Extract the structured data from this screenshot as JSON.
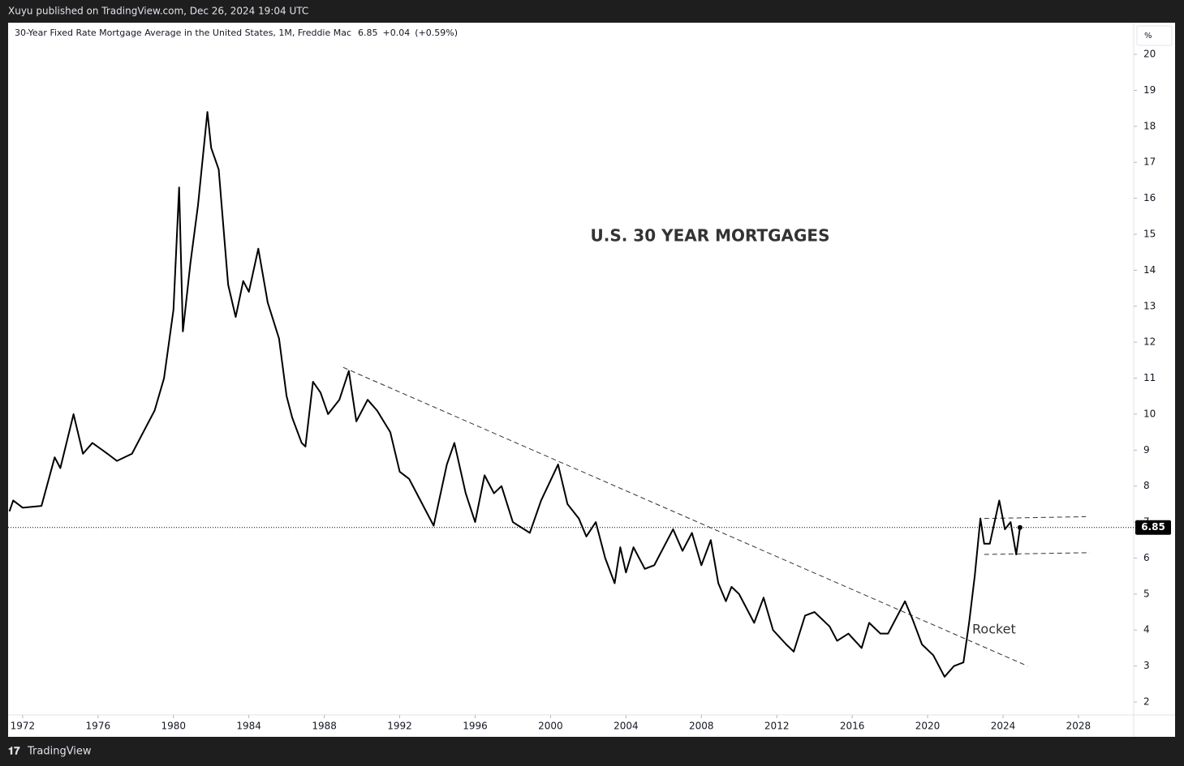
{
  "header": {
    "publisher": "Xuyu published on TradingView.com, Dec 26, 2024 19:04 UTC",
    "brand": "TradingView"
  },
  "chart_data": {
    "type": "line",
    "legend": {
      "name": "30-Year Fixed Rate Mortgage Average in the United States, 1M, Freddie Mac",
      "change": "+0.04",
      "change_pct": "(+0.59%)"
    },
    "annotations": {
      "title": "U.S. 30 YEAR MORTGAGES",
      "rocket": "Rocket"
    },
    "y_unit": "%",
    "xlim": [
      1971.23,
      2030.93
    ],
    "xticks": [
      1972,
      1976,
      1980,
      1984,
      1988,
      1992,
      1996,
      2000,
      2004,
      2008,
      2012,
      2016,
      2020,
      2024,
      2028
    ],
    "ylim": [
      1.64,
      20.88
    ],
    "yticks": [
      2,
      3,
      4,
      5,
      6,
      7,
      8,
      9,
      10,
      11,
      12,
      13,
      14,
      15,
      16,
      17,
      18,
      19,
      20
    ],
    "x": [
      1971.3,
      1971.5,
      1972,
      1973,
      1973.7,
      1974,
      1974.7,
      1975.2,
      1975.7,
      1976.5,
      1977,
      1977.8,
      1978.5,
      1979,
      1979.5,
      1980,
      1980.3,
      1980.5,
      1980.9,
      1981.3,
      1981.8,
      1982,
      1982.4,
      1982.9,
      1983.3,
      1983.7,
      1984,
      1984.5,
      1985,
      1985.6,
      1986,
      1986.3,
      1986.8,
      1987,
      1987.4,
      1987.8,
      1988.2,
      1988.8,
      1989.3,
      1989.7,
      1990.3,
      1990.8,
      1991.5,
      1992,
      1992.5,
      1993,
      1993.8,
      1994.5,
      1994.9,
      1995.5,
      1996,
      1996.5,
      1997,
      1997.4,
      1998,
      1998.9,
      1999.5,
      2000.4,
      2000.9,
      2001.5,
      2001.9,
      2002.4,
      2002.9,
      2003.4,
      2003.7,
      2004,
      2004.4,
      2005,
      2005.5,
      2006.5,
      2007,
      2007.5,
      2008,
      2008.5,
      2008.9,
      2009.3,
      2009.6,
      2010,
      2010.8,
      2011.3,
      2011.8,
      2012.5,
      2012.9,
      2013.5,
      2014,
      2014.8,
      2015.2,
      2015.8,
      2016.5,
      2016.9,
      2017.5,
      2017.9,
      2018.8,
      2019.2,
      2019.7,
      2020.3,
      2020.9,
      2021.4,
      2021.9,
      2022.2,
      2022.5,
      2022.8,
      2023,
      2023.3,
      2023.8,
      2024.1,
      2024.4,
      2024.7,
      2024.9
    ],
    "series": [
      {
        "name": "30-Year Fixed Rate Mortgage Average",
        "color": "#000000",
        "values": [
          7.3,
          7.6,
          7.4,
          7.45,
          8.8,
          8.5,
          10.0,
          8.9,
          9.2,
          8.9,
          8.7,
          8.9,
          9.6,
          10.1,
          11.0,
          12.9,
          16.3,
          12.3,
          14.2,
          15.8,
          18.4,
          17.4,
          16.8,
          13.6,
          12.7,
          13.7,
          13.4,
          14.6,
          13.1,
          12.1,
          10.5,
          9.9,
          9.2,
          9.1,
          10.9,
          10.6,
          10.0,
          10.4,
          11.2,
          9.8,
          10.4,
          10.1,
          9.5,
          8.4,
          8.2,
          7.7,
          6.9,
          8.6,
          9.2,
          7.8,
          7.0,
          8.3,
          7.8,
          8.0,
          7.0,
          6.7,
          7.6,
          8.6,
          7.5,
          7.1,
          6.6,
          7.0,
          6.0,
          5.3,
          6.3,
          5.6,
          6.3,
          5.7,
          5.8,
          6.8,
          6.2,
          6.7,
          5.8,
          6.5,
          5.3,
          4.8,
          5.2,
          5.0,
          4.2,
          4.9,
          4.0,
          3.6,
          3.4,
          4.4,
          4.5,
          4.1,
          3.7,
          3.9,
          3.5,
          4.2,
          3.9,
          3.9,
          4.8,
          4.3,
          3.6,
          3.3,
          2.7,
          3.0,
          3.1,
          4.2,
          5.5,
          7.1,
          6.4,
          6.4,
          7.6,
          6.8,
          7.0,
          6.1,
          6.85
        ]
      }
    ],
    "trendlines": [
      {
        "x": [
          1989,
          2025.3
        ],
        "values": [
          11.3,
          3.0
        ]
      },
      {
        "x": [
          2023,
          2028.4
        ],
        "values": [
          7.1,
          7.15
        ]
      },
      {
        "x": [
          2023,
          2028.6
        ],
        "values": [
          6.1,
          6.15
        ]
      }
    ]
  }
}
